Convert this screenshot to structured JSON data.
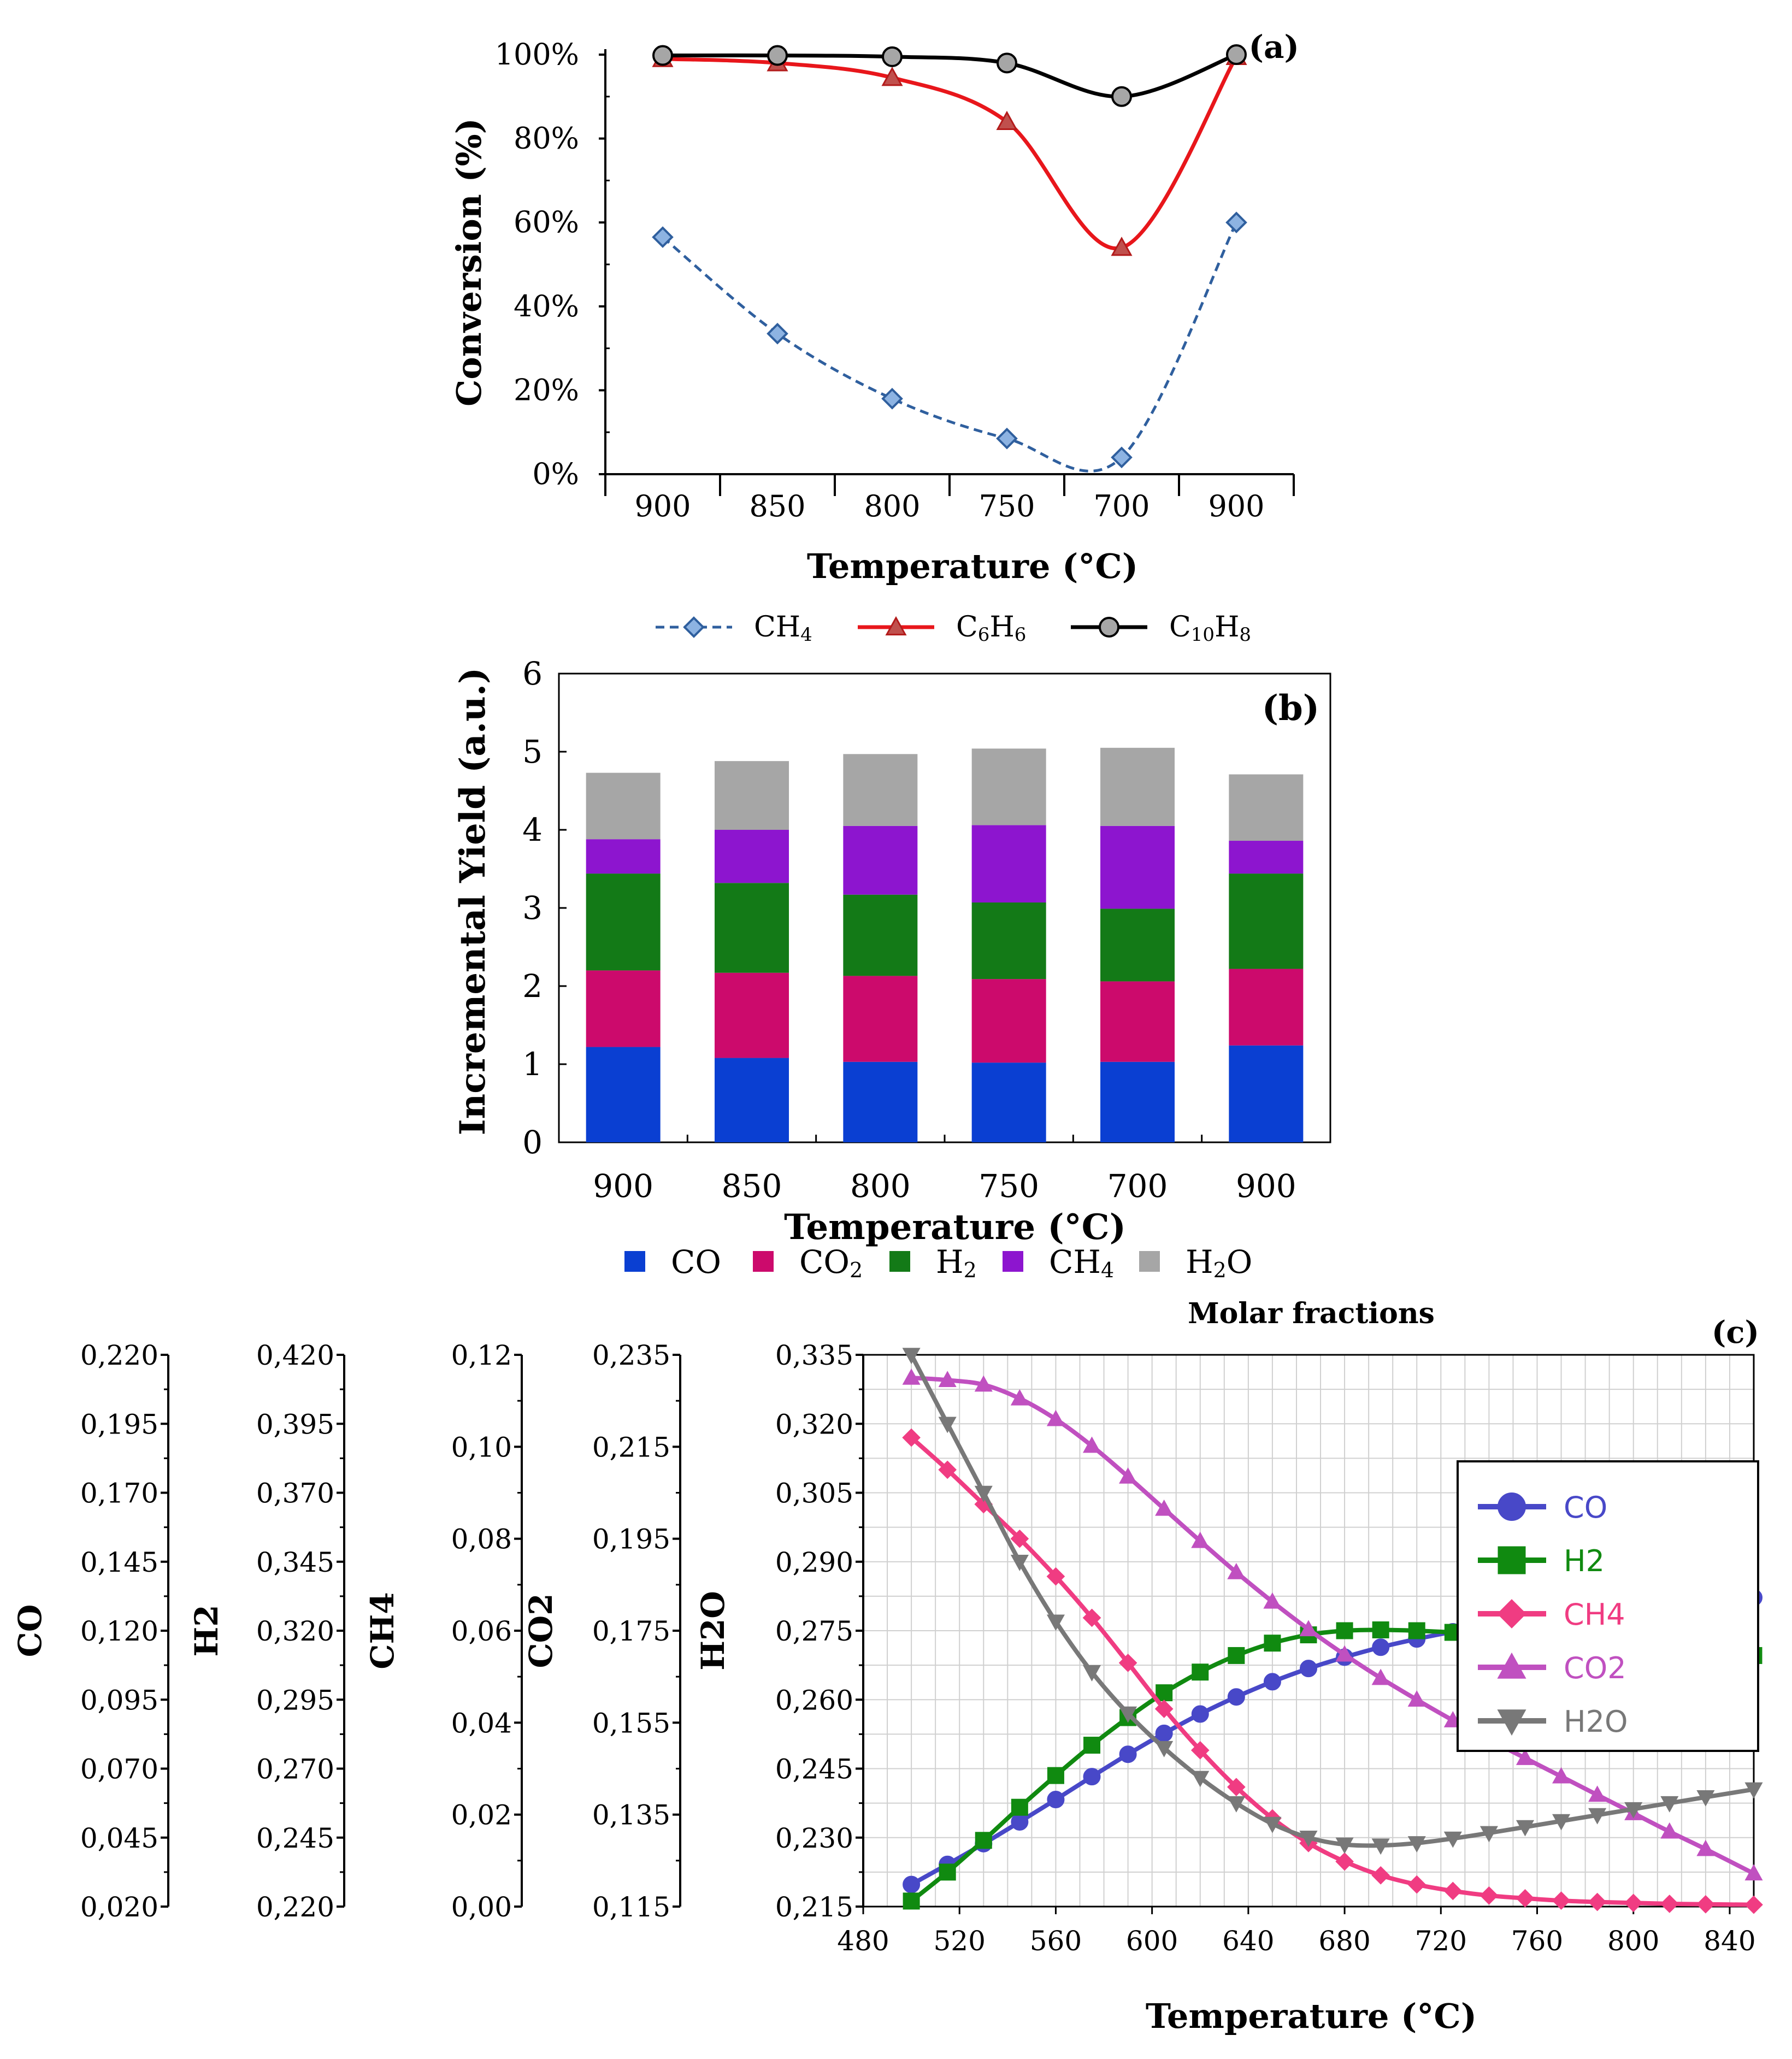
{
  "chart_data": [
    {
      "panel": "(a)",
      "type": "line",
      "categories": [
        "900",
        "850",
        "800",
        "750",
        "700",
        "900"
      ],
      "xlabel": "Temperature (°C)",
      "ylabel": "Conversion (%)",
      "ylim": [
        0,
        100
      ],
      "y_ticks": [
        "0%",
        "20%",
        "40%",
        "60%",
        "80%",
        "100%"
      ],
      "series": [
        {
          "name": "CH4",
          "legend_main": "CH",
          "legend_sub": "4",
          "values": [
            56.5,
            33.5,
            18,
            8.5,
            4,
            60
          ],
          "color": "#2f5f9e",
          "marker": "diamond",
          "dashed": true
        },
        {
          "name": "C6H6",
          "legend_main": "C6H6",
          "values": [
            99,
            98,
            94.5,
            84,
            54,
            99.5
          ],
          "color": "#e8161b",
          "marker": "triangle",
          "dashed": false
        },
        {
          "name": "C10H8",
          "legend_main": "C10H8",
          "values": [
            99.8,
            99.8,
            99.5,
            98,
            90,
            100
          ],
          "color": "#000000",
          "marker": "circle",
          "dashed": false
        }
      ]
    },
    {
      "panel": "(b)",
      "type": "bar",
      "stacked": true,
      "categories": [
        "900",
        "850",
        "800",
        "750",
        "700",
        "900"
      ],
      "xlabel": "Temperature (°C)",
      "ylabel": "Incremental Yield (a.u.)",
      "ylim": [
        0,
        6
      ],
      "y_ticks": [
        "0",
        "1",
        "2",
        "3",
        "4",
        "5",
        "6"
      ],
      "series": [
        {
          "name": "CO",
          "values": [
            1.22,
            1.08,
            1.03,
            1.02,
            1.03,
            1.24
          ],
          "color": "#0a3fd2"
        },
        {
          "name": "CO2",
          "values": [
            0.98,
            1.09,
            1.1,
            1.07,
            1.03,
            0.98
          ],
          "color": "#cc0a6c"
        },
        {
          "name": "H2",
          "values": [
            1.24,
            1.15,
            1.04,
            0.98,
            0.93,
            1.22
          ],
          "color": "#137a17"
        },
        {
          "name": "CH4",
          "values": [
            0.44,
            0.68,
            0.88,
            0.99,
            1.06,
            0.42
          ],
          "color": "#8d15cf"
        },
        {
          "name": "H2O",
          "values": [
            0.85,
            0.88,
            0.92,
            0.98,
            1.0,
            0.85
          ],
          "color": "#a6a6a6"
        }
      ]
    },
    {
      "panel": "(c)",
      "type": "line",
      "title": "Molar fractions",
      "xlabel": "Temperature (°C)",
      "xlim": [
        480,
        850
      ],
      "x_ticks": [
        "480",
        "520",
        "560",
        "600",
        "640",
        "680",
        "720",
        "760",
        "800",
        "840"
      ],
      "x": [
        500,
        515,
        530,
        545,
        560,
        575,
        590,
        605,
        620,
        635,
        650,
        665,
        680,
        695,
        710,
        725,
        740,
        755,
        770,
        785,
        800,
        815,
        830,
        850
      ],
      "axes": [
        {
          "label": "CO",
          "range": [
            0.02,
            0.22
          ],
          "ticks": [
            "0,020",
            "0,045",
            "0,070",
            "0,095",
            "0,120",
            "0,145",
            "0,170",
            "0,195",
            "0,220"
          ]
        },
        {
          "label": "H2",
          "range": [
            0.22,
            0.42
          ],
          "ticks": [
            "0,220",
            "0,245",
            "0,270",
            "0,295",
            "0,320",
            "0,345",
            "0,370",
            "0,395",
            "0,420"
          ]
        },
        {
          "label": "CH4",
          "range": [
            0.0,
            0.12
          ],
          "ticks": [
            "0,00",
            "0,02",
            "0,04",
            "0,06",
            "0,08",
            "0,10",
            "0,12"
          ]
        },
        {
          "label": "CO2",
          "range": [
            0.115,
            0.235
          ],
          "ticks": [
            "0,115",
            "0,135",
            "0,155",
            "0,175",
            "0,195",
            "0,215",
            "0,235"
          ]
        },
        {
          "label": "H2O",
          "range": [
            0.215,
            0.335
          ],
          "ticks": [
            "0,215",
            "0,230",
            "0,245",
            "0,260",
            "0,275",
            "0,290",
            "0,305",
            "0,320",
            "0,335"
          ]
        }
      ],
      "series": [
        {
          "name": "CO",
          "axis": "CO",
          "color": "#4848c8",
          "marker": "circle",
          "values": [
            0.028,
            0.0353,
            0.0428,
            0.0507,
            0.0588,
            0.0671,
            0.0752,
            0.0828,
            0.0898,
            0.096,
            0.1015,
            0.1063,
            0.1104,
            0.114,
            0.117,
            0.1196,
            0.1218,
            0.1238,
            0.1255,
            0.127,
            0.1283,
            0.1295,
            0.1306,
            0.132
          ]
        },
        {
          "name": "H2",
          "axis": "H2",
          "color": "#108a10",
          "marker": "square",
          "values": [
            0.222,
            0.2325,
            0.244,
            0.256,
            0.2675,
            0.2785,
            0.2885,
            0.2975,
            0.305,
            0.311,
            0.3155,
            0.3185,
            0.32,
            0.3203,
            0.32,
            0.3194,
            0.3186,
            0.3177,
            0.3167,
            0.3157,
            0.3146,
            0.3136,
            0.3125,
            0.311
          ]
        },
        {
          "name": "CH4",
          "axis": "CH4",
          "color": "#f03c82",
          "marker": "diamond",
          "values": [
            0.102,
            0.095,
            0.0875,
            0.08,
            0.0718,
            0.0628,
            0.053,
            0.043,
            0.034,
            0.026,
            0.0192,
            0.0138,
            0.0098,
            0.0068,
            0.0048,
            0.0034,
            0.0024,
            0.0018,
            0.0013,
            0.001,
            0.0008,
            0.0006,
            0.0005,
            0.0004
          ]
        },
        {
          "name": "CO2",
          "axis": "CO2",
          "color": "#c050c0",
          "marker": "triangle",
          "values": [
            0.23,
            0.2295,
            0.2285,
            0.2255,
            0.221,
            0.2152,
            0.2085,
            0.2015,
            0.1945,
            0.1877,
            0.1813,
            0.1753,
            0.1698,
            0.1647,
            0.16,
            0.1555,
            0.1513,
            0.1473,
            0.1433,
            0.1393,
            0.1353,
            0.1313,
            0.1275,
            0.1222
          ]
        },
        {
          "name": "H2O",
          "axis": "H2O",
          "color": "#787878",
          "marker": "triangle-down",
          "values": [
            0.335,
            0.32,
            0.305,
            0.29,
            0.277,
            0.266,
            0.257,
            0.2495,
            0.243,
            0.2375,
            0.233,
            0.23,
            0.2285,
            0.2283,
            0.2288,
            0.2298,
            0.231,
            0.2323,
            0.2336,
            0.2349,
            0.2362,
            0.2375,
            0.2388,
            0.2405
          ]
        }
      ]
    }
  ]
}
